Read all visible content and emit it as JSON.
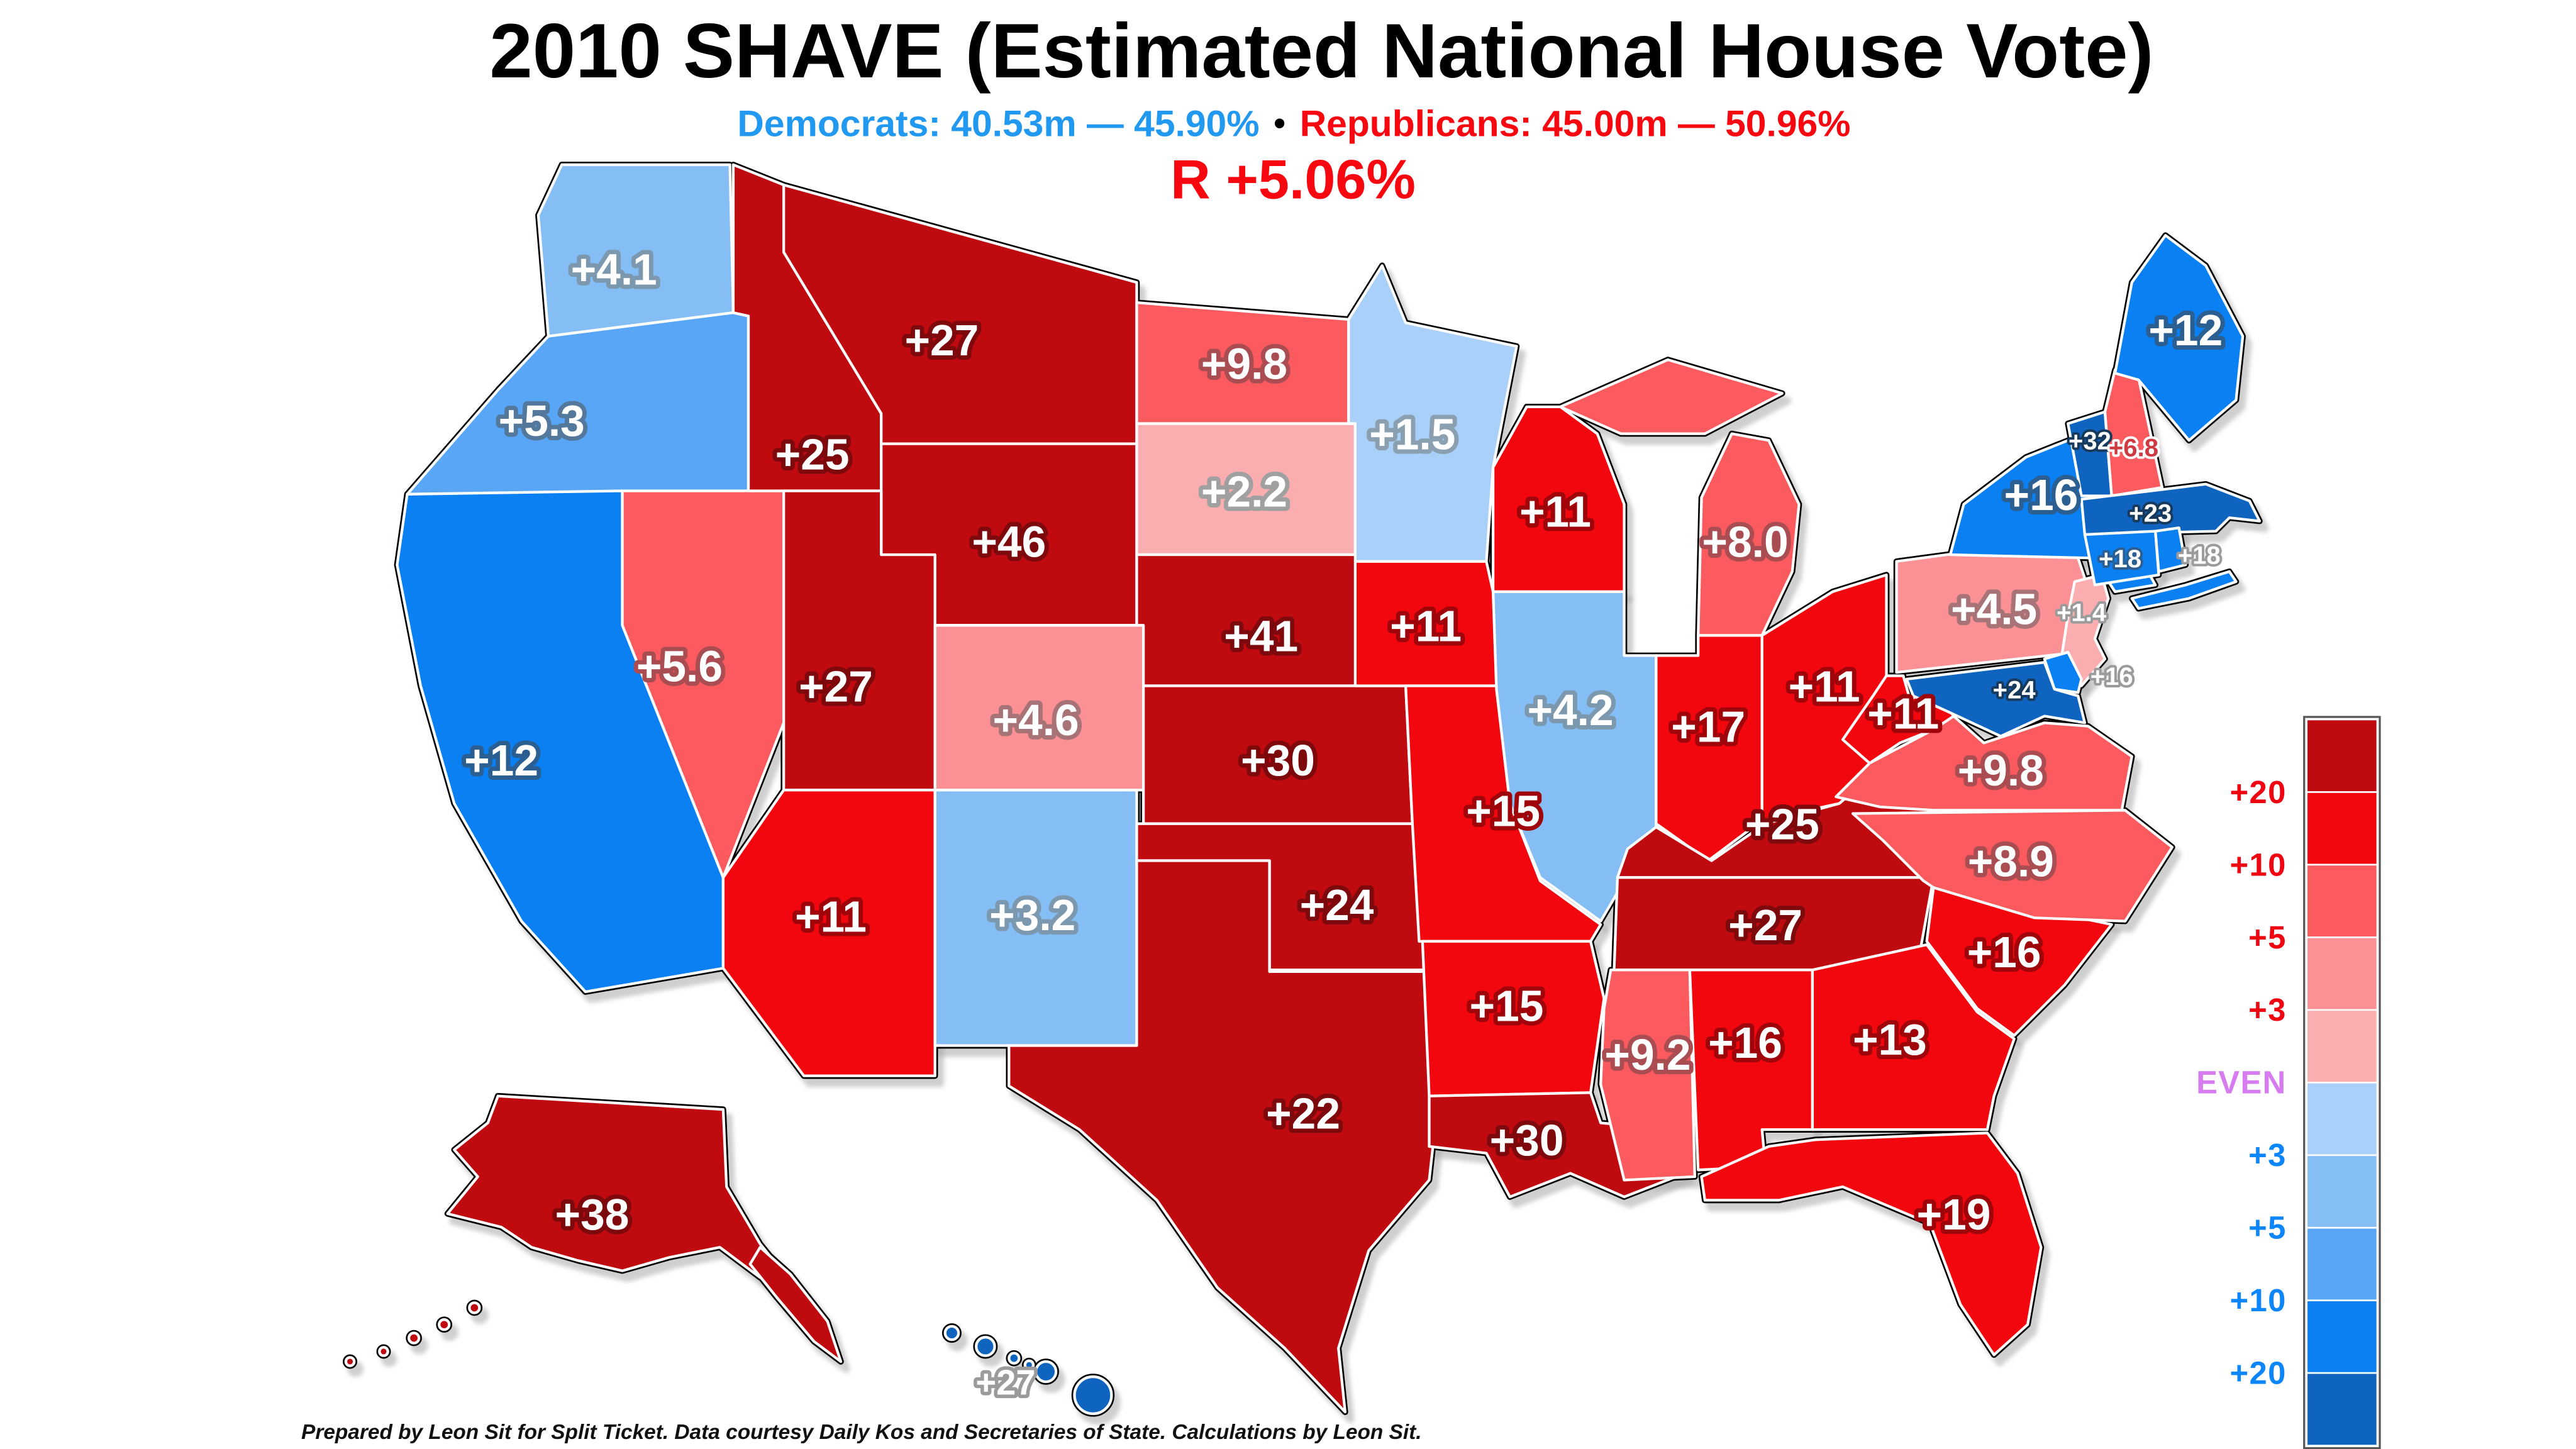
{
  "header": {
    "title": "2010 SHAVE (Estimated National House Vote)",
    "dem_stats": "Democrats: 40.53m — 45.90%",
    "bullet": "•",
    "rep_stats": "Republicans: 45.00m — 50.96%",
    "national_margin": "R +5.06%",
    "dem_color": "#2199f1",
    "rep_color": "#f70810"
  },
  "footer": {
    "credit": "Prepared by Leon Sit for Split Ticket. Data courtesy Daily Kos and Secretaries of State. Calculations by Leon Sit."
  },
  "palette": {
    "r20": "#bf0a10",
    "r10": "#f3070e",
    "r5": "#fb5a5e",
    "r3": "#fb9194",
    "r0": "#fbaeb0",
    "d0": "#a9d0f8",
    "d3": "#85bdf5",
    "d5": "#58a6f5",
    "d10": "#0b80f2",
    "d20": "#0f64c0"
  },
  "legend": {
    "segments": [
      "r20",
      "r10",
      "r5",
      "r3",
      "r0",
      "d0",
      "d3",
      "d5",
      "d10",
      "d20"
    ],
    "boundaries": [
      {
        "label": "+20",
        "side": "rep"
      },
      {
        "label": "+10",
        "side": "rep"
      },
      {
        "label": "+5",
        "side": "rep"
      },
      {
        "label": "+3",
        "side": "rep"
      },
      {
        "label": "EVEN",
        "side": "even"
      },
      {
        "label": "+3",
        "side": "dem"
      },
      {
        "label": "+5",
        "side": "dem"
      },
      {
        "label": "+10",
        "side": "dem"
      },
      {
        "label": "+20",
        "side": "dem"
      }
    ],
    "label_colors": {
      "rep": "#ee0511",
      "dem": "#0d86fb",
      "even": "#d77cf0"
    }
  },
  "states": [
    {
      "id": "WA",
      "name": "Washington",
      "label": "+4.1",
      "bucket": "d3"
    },
    {
      "id": "OR",
      "name": "Oregon",
      "label": "+5.3",
      "bucket": "d5"
    },
    {
      "id": "CA",
      "name": "California",
      "label": "+12",
      "bucket": "d10"
    },
    {
      "id": "NV",
      "name": "Nevada",
      "label": "+5.6",
      "bucket": "r5"
    },
    {
      "id": "ID",
      "name": "Idaho",
      "label": "+25",
      "bucket": "r20"
    },
    {
      "id": "MT",
      "name": "Montana",
      "label": "+27",
      "bucket": "r20"
    },
    {
      "id": "WY",
      "name": "Wyoming",
      "label": "+46",
      "bucket": "r20"
    },
    {
      "id": "UT",
      "name": "Utah",
      "label": "+27",
      "bucket": "r20"
    },
    {
      "id": "CO",
      "name": "Colorado",
      "label": "+4.6",
      "bucket": "r3"
    },
    {
      "id": "AZ",
      "name": "Arizona",
      "label": "+11",
      "bucket": "r10"
    },
    {
      "id": "NM",
      "name": "New Mexico",
      "label": "+3.2",
      "bucket": "d3"
    },
    {
      "id": "ND",
      "name": "North Dakota",
      "label": "+9.8",
      "bucket": "r5"
    },
    {
      "id": "SD",
      "name": "South Dakota",
      "label": "+2.2",
      "bucket": "r0"
    },
    {
      "id": "NE",
      "name": "Nebraska",
      "label": "+41",
      "bucket": "r20"
    },
    {
      "id": "KS",
      "name": "Kansas",
      "label": "+30",
      "bucket": "r20"
    },
    {
      "id": "OK",
      "name": "Oklahoma",
      "label": "+24",
      "bucket": "r20"
    },
    {
      "id": "TX",
      "name": "Texas",
      "label": "+22",
      "bucket": "r20"
    },
    {
      "id": "MN",
      "name": "Minnesota",
      "label": "+1.5",
      "bucket": "d0"
    },
    {
      "id": "IA",
      "name": "Iowa",
      "label": "+11",
      "bucket": "r10"
    },
    {
      "id": "MO",
      "name": "Missouri",
      "label": "+15",
      "bucket": "r10"
    },
    {
      "id": "AR",
      "name": "Arkansas",
      "label": "+15",
      "bucket": "r10"
    },
    {
      "id": "LA",
      "name": "Louisiana",
      "label": "+30",
      "bucket": "r20"
    },
    {
      "id": "WI",
      "name": "Wisconsin",
      "label": "+11",
      "bucket": "r10"
    },
    {
      "id": "IL",
      "name": "Illinois",
      "label": "+4.2",
      "bucket": "d3"
    },
    {
      "id": "MI",
      "name": "Michigan",
      "label": "+8.0",
      "bucket": "r5"
    },
    {
      "id": "IN",
      "name": "Indiana",
      "label": "+17",
      "bucket": "r10"
    },
    {
      "id": "OH",
      "name": "Ohio",
      "label": "+11",
      "bucket": "r10"
    },
    {
      "id": "KY",
      "name": "Kentucky",
      "label": "+25",
      "bucket": "r20"
    },
    {
      "id": "TN",
      "name": "Tennessee",
      "label": "+27",
      "bucket": "r20"
    },
    {
      "id": "MS",
      "name": "Mississippi",
      "label": "+9.2",
      "bucket": "r5"
    },
    {
      "id": "AL",
      "name": "Alabama",
      "label": "+16",
      "bucket": "r10"
    },
    {
      "id": "GA",
      "name": "Georgia",
      "label": "+13",
      "bucket": "r10"
    },
    {
      "id": "FL",
      "name": "Florida",
      "label": "+19",
      "bucket": "r10"
    },
    {
      "id": "SC",
      "name": "South Carolina",
      "label": "+16",
      "bucket": "r10"
    },
    {
      "id": "NC",
      "name": "North Carolina",
      "label": "+8.9",
      "bucket": "r5"
    },
    {
      "id": "VA",
      "name": "Virginia",
      "label": "+9.8",
      "bucket": "r5"
    },
    {
      "id": "WV",
      "name": "West Virginia",
      "label": "+11",
      "bucket": "r10"
    },
    {
      "id": "PA",
      "name": "Pennsylvania",
      "label": "+4.5",
      "bucket": "r3"
    },
    {
      "id": "NY",
      "name": "New York",
      "label": "+16",
      "bucket": "d10"
    },
    {
      "id": "NJ",
      "name": "New Jersey",
      "label": "+1.4",
      "bucket": "r0",
      "label_style": "gray"
    },
    {
      "id": "DE",
      "name": "Delaware",
      "label": "+16",
      "bucket": "d10",
      "label_style": "gray"
    },
    {
      "id": "MD",
      "name": "Maryland",
      "label": "+24",
      "bucket": "d20"
    },
    {
      "id": "VT",
      "name": "Vermont",
      "label": "+32",
      "bucket": "d20"
    },
    {
      "id": "NH",
      "name": "New Hampshire",
      "label": "+6.8",
      "bucket": "r5",
      "label_style": "nh"
    },
    {
      "id": "ME",
      "name": "Maine",
      "label": "+12",
      "bucket": "d10"
    },
    {
      "id": "MA",
      "name": "Massachusetts",
      "label": "+23",
      "bucket": "d20"
    },
    {
      "id": "CT",
      "name": "Connecticut",
      "label": "+18",
      "bucket": "d10"
    },
    {
      "id": "RI",
      "name": "Rhode Island",
      "label": "+18",
      "bucket": "d10",
      "label_style": "gray"
    },
    {
      "id": "AK",
      "name": "Alaska",
      "label": "+38",
      "bucket": "r20"
    },
    {
      "id": "HI",
      "name": "Hawaii",
      "label": "+27",
      "bucket": "d20",
      "label_style": "gray"
    }
  ]
}
